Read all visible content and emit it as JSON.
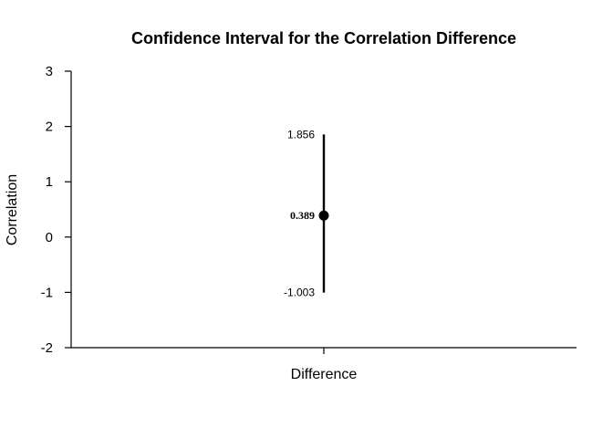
{
  "chart_data": {
    "type": "scatter",
    "title": "Confidence Interval for the Correlation Difference",
    "xlabel": "",
    "ylabel": "Correlation",
    "ylim": [
      -2,
      3
    ],
    "yticks": [
      "-2",
      "-1",
      "0",
      "1",
      "2",
      "3"
    ],
    "categories": [
      "Difference"
    ],
    "estimate": 0.389,
    "lower": -1.003,
    "upper": 1.856,
    "estimate_label": "0.389",
    "lower_label": "-1.003",
    "upper_label": "1.856",
    "grid": false,
    "legend": "none"
  }
}
